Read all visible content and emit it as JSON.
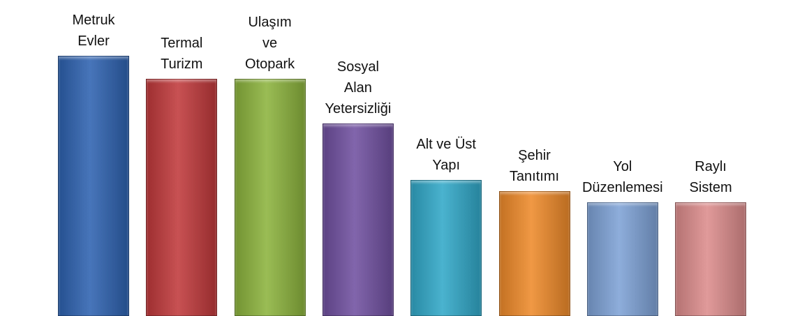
{
  "chart_data": {
    "type": "bar",
    "categories": [
      "Metruk\nEvler",
      "Termal\nTurizm",
      "Ulaşım\nve\nOtopark",
      "Sosyal\nAlan\nYetersizliği",
      "Alt ve Üst\nYapı",
      "Şehir\nTanıtımı",
      "Yol\nDüzenlemesi",
      "Raylı\nSistem"
    ],
    "values": [
      371,
      338,
      338,
      274,
      193,
      177,
      161,
      161
    ],
    "colors": [
      "#2e62b0",
      "#c0393b",
      "#8cb33d",
      "#7050a0",
      "#31a8c8",
      "#ee8a2a",
      "#7ea2d6",
      "#dc8c8c"
    ],
    "ylim": [
      0,
      400
    ]
  }
}
